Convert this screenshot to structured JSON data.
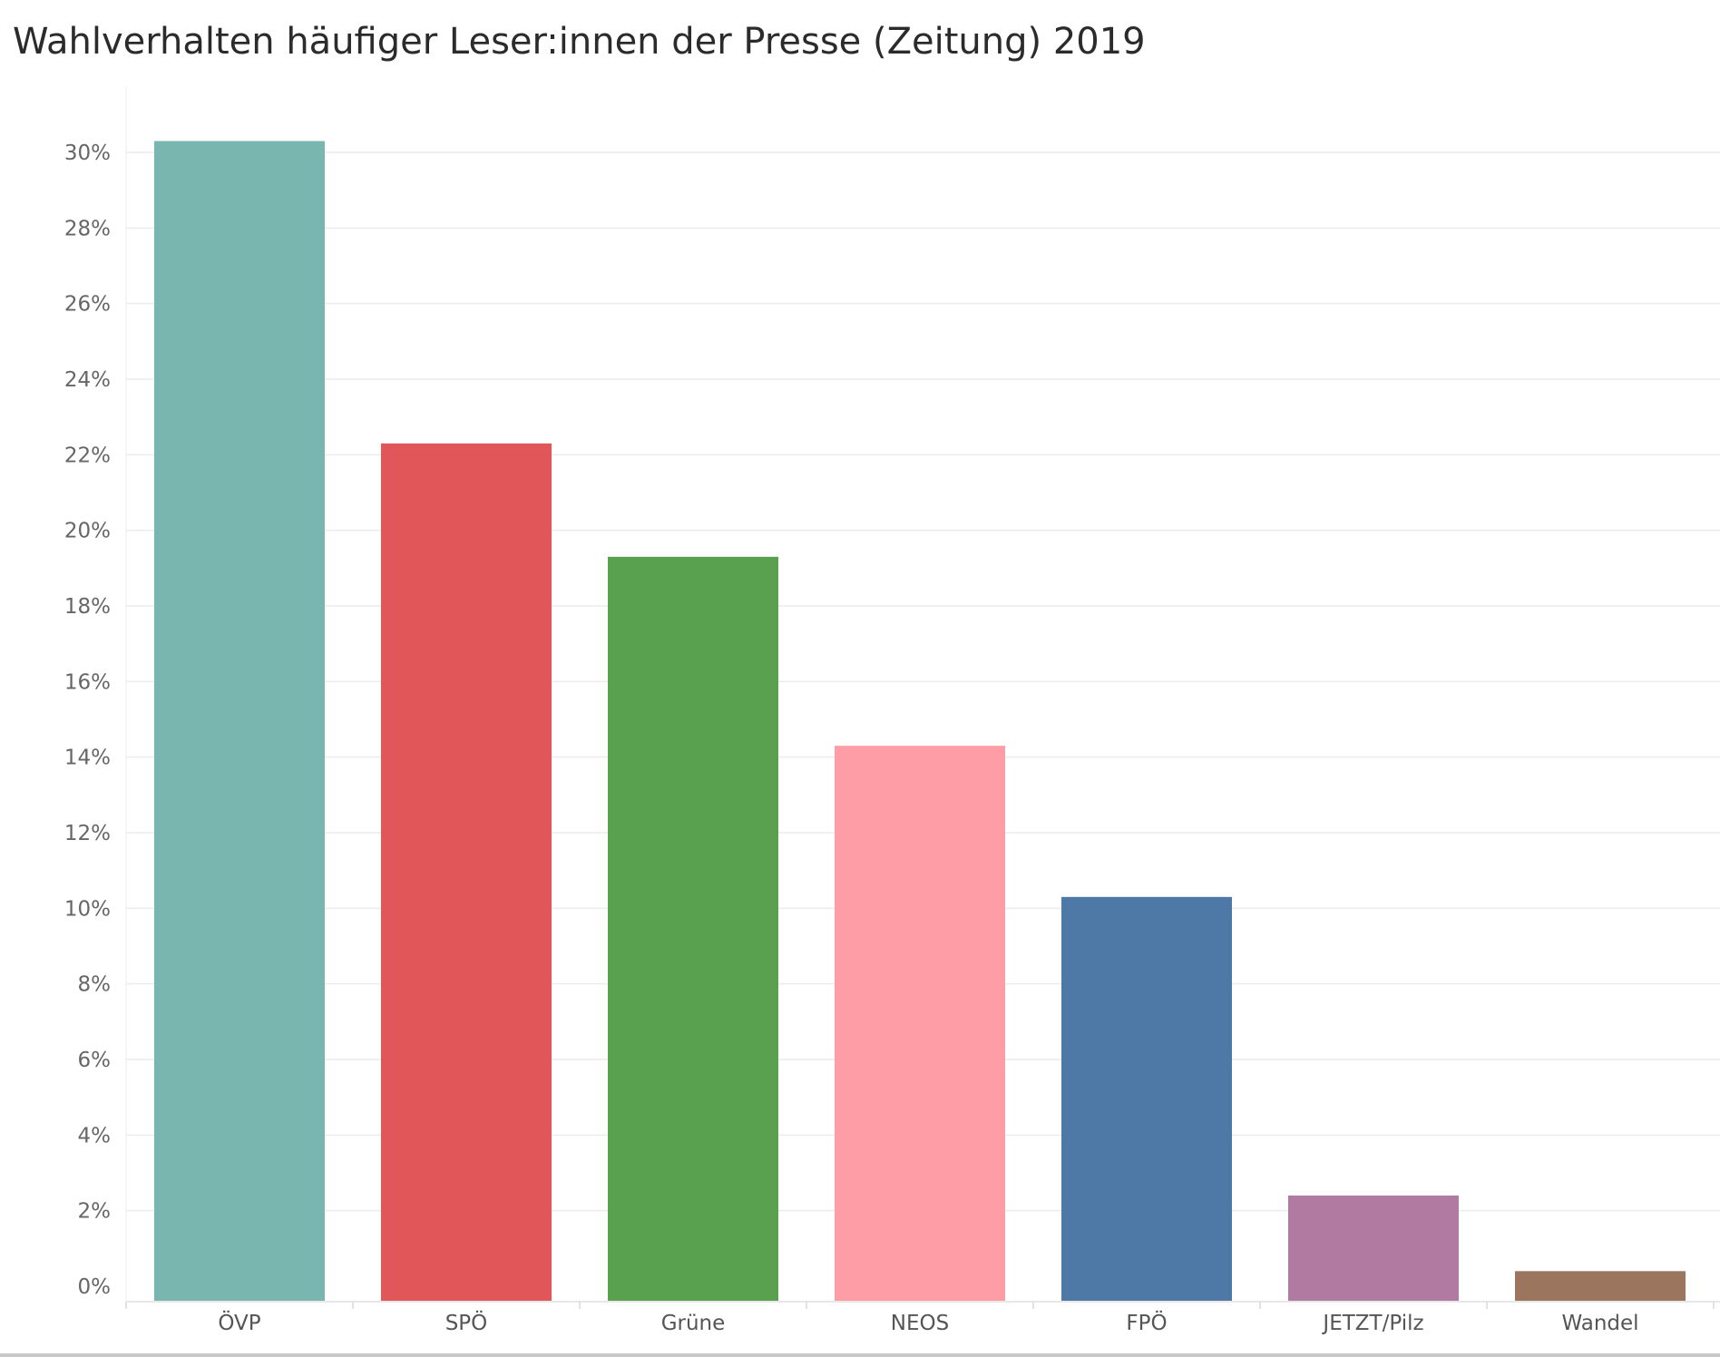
{
  "chart_data": {
    "type": "bar",
    "title": "Wahlverhalten häufiger Leser:innen der Presse (Zeitung) 2019",
    "xlabel": "",
    "ylabel": "",
    "categories": [
      "ÖVP",
      "SPÖ",
      "Grüne",
      "NEOS",
      "FPÖ",
      "JETZT/Pilz",
      "Wandel"
    ],
    "values": [
      30.3,
      22.3,
      19.3,
      14.3,
      10.3,
      2.4,
      0.4
    ],
    "colors": [
      "#79b6b0",
      "#e15759",
      "#59a14f",
      "#ff9da7",
      "#4e79a7",
      "#b07aa1",
      "#9c755f"
    ],
    "ylim": [
      0,
      30
    ],
    "yticks": [
      0,
      2,
      4,
      6,
      8,
      10,
      12,
      14,
      16,
      18,
      20,
      22,
      24,
      26,
      28,
      30
    ],
    "ytick_labels": [
      "0%",
      "2%",
      "4%",
      "6%",
      "8%",
      "10%",
      "12%",
      "14%",
      "16%",
      "18%",
      "20%",
      "22%",
      "24%",
      "26%",
      "28%",
      "30%"
    ],
    "grid": true,
    "legend": "none"
  }
}
